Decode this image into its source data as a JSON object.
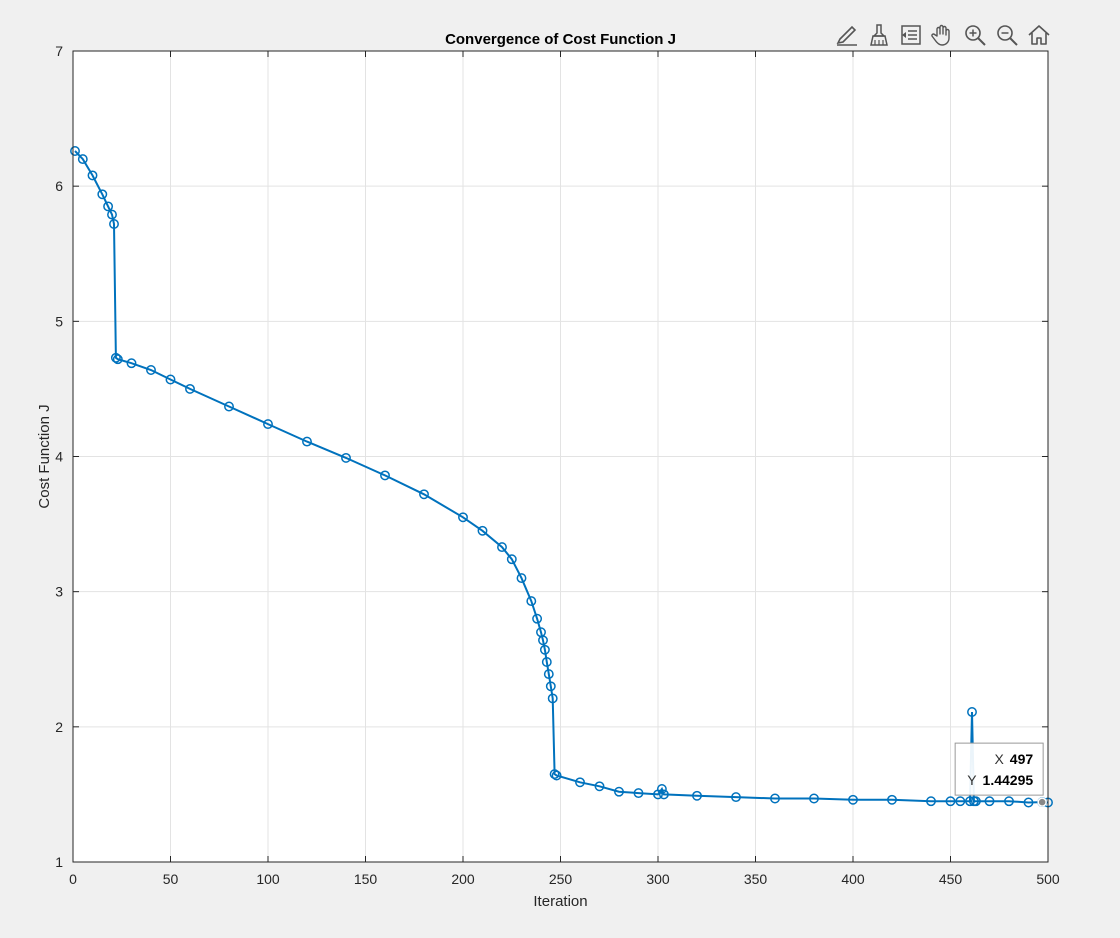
{
  "toolbar": {
    "buttons": [
      {
        "name": "edit-plot-icon"
      },
      {
        "name": "brush-icon"
      },
      {
        "name": "legend-icon"
      },
      {
        "name": "pan-hand-icon"
      },
      {
        "name": "zoom-in-icon"
      },
      {
        "name": "zoom-out-icon"
      },
      {
        "name": "home-icon"
      }
    ]
  },
  "datatip": {
    "x_label": "X",
    "x_value": "497",
    "y_label": "Y",
    "y_value": "1.44295"
  },
  "colors": {
    "line": "#0072bd",
    "background": "#f0f0f0",
    "axes": "#ffffff",
    "grid": "#e3e3e3"
  },
  "chart_data": {
    "type": "line",
    "title": "Convergence of Cost Function J",
    "xlabel": "Iteration",
    "ylabel": "Cost Function J",
    "xlim": [
      0,
      500
    ],
    "ylim": [
      1,
      7
    ],
    "xticks": [
      0,
      50,
      100,
      150,
      200,
      250,
      300,
      350,
      400,
      450,
      500
    ],
    "yticks": [
      1,
      2,
      3,
      4,
      5,
      6,
      7
    ],
    "grid": true,
    "marker": "circle",
    "series": [
      {
        "x": [
          1,
          5,
          10,
          15,
          18,
          20,
          21,
          22,
          23,
          30,
          40,
          50,
          60,
          80,
          100,
          120,
          140,
          160,
          180,
          200,
          210,
          220,
          225,
          230,
          235,
          238,
          240,
          241,
          242,
          243,
          244,
          245,
          246,
          247,
          248,
          260,
          270,
          280,
          290,
          300,
          302,
          303,
          320,
          340,
          360,
          380,
          400,
          420,
          440,
          450,
          455,
          460,
          461,
          462,
          463,
          470,
          480,
          490,
          497,
          500
        ],
        "y": [
          6.26,
          6.2,
          6.08,
          5.94,
          5.85,
          5.79,
          5.72,
          4.73,
          4.72,
          4.69,
          4.64,
          4.57,
          4.5,
          4.37,
          4.24,
          4.11,
          3.99,
          3.86,
          3.72,
          3.55,
          3.45,
          3.33,
          3.24,
          3.1,
          2.93,
          2.8,
          2.7,
          2.64,
          2.57,
          2.48,
          2.39,
          2.3,
          2.21,
          1.65,
          1.64,
          1.59,
          1.56,
          1.52,
          1.51,
          1.5,
          1.54,
          1.5,
          1.49,
          1.48,
          1.47,
          1.47,
          1.46,
          1.46,
          1.45,
          1.45,
          1.45,
          1.45,
          2.11,
          1.45,
          1.45,
          1.45,
          1.45,
          1.44,
          1.44295,
          1.44
        ]
      }
    ]
  }
}
